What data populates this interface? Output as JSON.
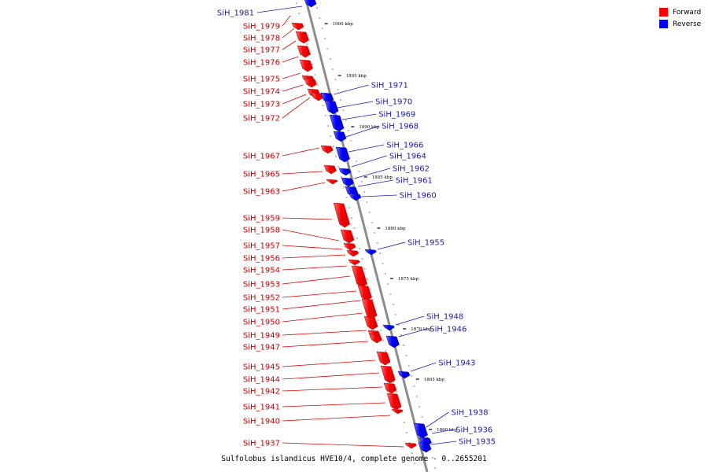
{
  "legend": {
    "forward_label": "Forward",
    "reverse_label": "Reverse",
    "forward_color": "#ff0000",
    "reverse_color": "#0000ff"
  },
  "caption": {
    "text": "Sulfolobus islandicus HVE10/4, complete genome - 0..2655201"
  },
  "axis": {
    "ticks": [
      {
        "label": "1900 kbp",
        "kbp": 1900
      },
      {
        "label": "1895 kbp",
        "kbp": 1895
      },
      {
        "label": "1890 kbp",
        "kbp": 1890
      },
      {
        "label": "1885 kbp",
        "kbp": 1885
      },
      {
        "label": "1880 kbp",
        "kbp": 1880
      },
      {
        "label": "1875 kbp",
        "kbp": 1875
      },
      {
        "label": "1870 kbp",
        "kbp": 1870
      },
      {
        "label": "1865 kbp",
        "kbp": 1865
      },
      {
        "label": "1860 kbp",
        "kbp": 1860
      }
    ]
  },
  "forward_genes": [
    {
      "name": "SiH_1979"
    },
    {
      "name": "SiH_1978"
    },
    {
      "name": "SiH_1977"
    },
    {
      "name": "SiH_1976"
    },
    {
      "name": "SiH_1975"
    },
    {
      "name": "SiH_1974"
    },
    {
      "name": "SiH_1973"
    },
    {
      "name": "SiH_1972"
    },
    {
      "name": "SiH_1967"
    },
    {
      "name": "SiH_1965"
    },
    {
      "name": "SiH_1963"
    },
    {
      "name": "SiH_1959"
    },
    {
      "name": "SiH_1958"
    },
    {
      "name": "SiH_1957"
    },
    {
      "name": "SiH_1956"
    },
    {
      "name": "SiH_1954"
    },
    {
      "name": "SiH_1953"
    },
    {
      "name": "SiH_1952"
    },
    {
      "name": "SiH_1951"
    },
    {
      "name": "SiH_1950"
    },
    {
      "name": "SiH_1949"
    },
    {
      "name": "SiH_1947"
    },
    {
      "name": "SiH_1945"
    },
    {
      "name": "SiH_1944"
    },
    {
      "name": "SiH_1942"
    },
    {
      "name": "SiH_1941"
    },
    {
      "name": "SiH_1940"
    },
    {
      "name": "SiH_1937"
    }
  ],
  "reverse_genes": [
    {
      "name": "SiH_1981"
    },
    {
      "name": "SiH_1971"
    },
    {
      "name": "SiH_1970"
    },
    {
      "name": "SiH_1969"
    },
    {
      "name": "SiH_1968"
    },
    {
      "name": "SiH_1966"
    },
    {
      "name": "SiH_1964"
    },
    {
      "name": "SiH_1962"
    },
    {
      "name": "SiH_1961"
    },
    {
      "name": "SiH_1960"
    },
    {
      "name": "SiH_1955"
    },
    {
      "name": "SiH_1948"
    },
    {
      "name": "SiH_1946"
    },
    {
      "name": "SiH_1943"
    },
    {
      "name": "SiH_1938"
    },
    {
      "name": "SiH_1936"
    },
    {
      "name": "SiH_1935"
    }
  ]
}
